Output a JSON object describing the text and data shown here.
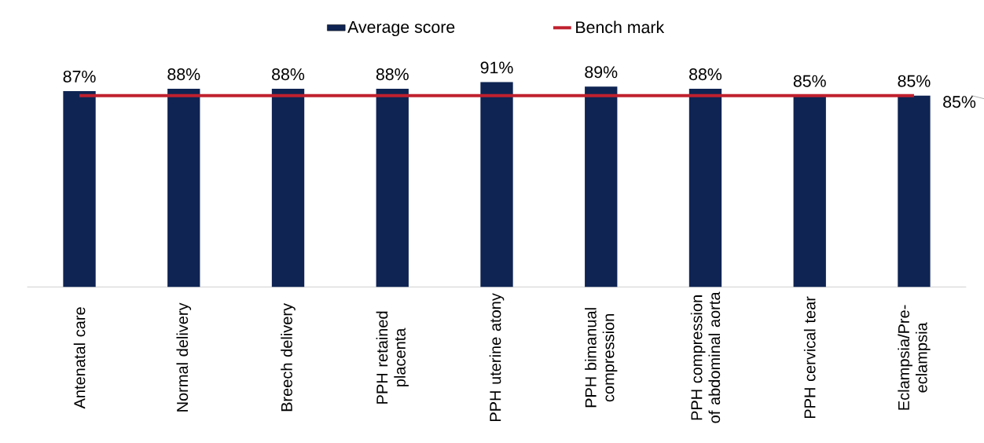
{
  "chart_data": {
    "type": "bar",
    "tick_labels": "x",
    "legend": "top",
    "categories": [
      "Antenatal care",
      "Normal delivery",
      "Breech delivery",
      "PPH retained placenta",
      "PPH uterine atony",
      "PPH bimanual compression",
      "PPH compression of abdominal aorta",
      "PPH cervical tear",
      "Eclampsia/Pre-eclampsia"
    ],
    "series": [
      {
        "name": "Average score",
        "color": "#0f2453",
        "values": [
          87,
          88,
          88,
          88,
          91,
          89,
          88,
          85,
          85
        ],
        "value_labels": [
          "87%",
          "88%",
          "88%",
          "88%",
          "91%",
          "89%",
          "88%",
          "85%",
          "85%"
        ]
      },
      {
        "name": "Bench mark",
        "type": "line",
        "color": "#c0202e",
        "values": [
          85,
          85,
          85,
          85,
          85,
          85,
          85,
          85,
          85
        ],
        "value_labels": [
          null,
          null,
          null,
          null,
          null,
          null,
          null,
          null,
          "85%"
        ]
      }
    ]
  }
}
